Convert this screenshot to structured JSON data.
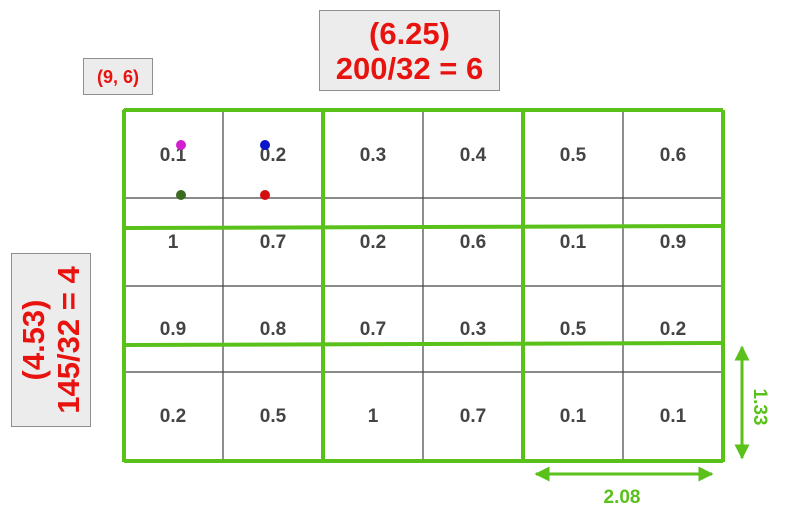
{
  "label_small": "(9, 6)",
  "label_top": {
    "line1": "(6.25)",
    "line2": "200/32 = 6"
  },
  "label_left": {
    "line1": "(4.53)",
    "line2": "145/32 = 4"
  },
  "grid": {
    "rows": [
      [
        "0.1",
        "0.2",
        "0.3",
        "0.4",
        "0.5",
        "0.6"
      ],
      [
        "1",
        "0.7",
        "0.2",
        "0.6",
        "0.1",
        "0.9"
      ],
      [
        "0.9",
        "0.8",
        "0.7",
        "0.3",
        "0.5",
        "0.2"
      ],
      [
        "0.2",
        "0.5",
        "1",
        "0.7",
        "0.1",
        "0.1"
      ]
    ]
  },
  "dimensions": {
    "width": "2.08",
    "height": "1.33"
  },
  "colors": {
    "accent_red": "#e8130f",
    "bin_green": "#5ac11a",
    "grid_line": "#444444",
    "dot_magenta": "#d21fd2",
    "dot_blue": "#0a16c8",
    "dot_green": "#3a6b1e",
    "dot_red": "#d40e0e"
  }
}
